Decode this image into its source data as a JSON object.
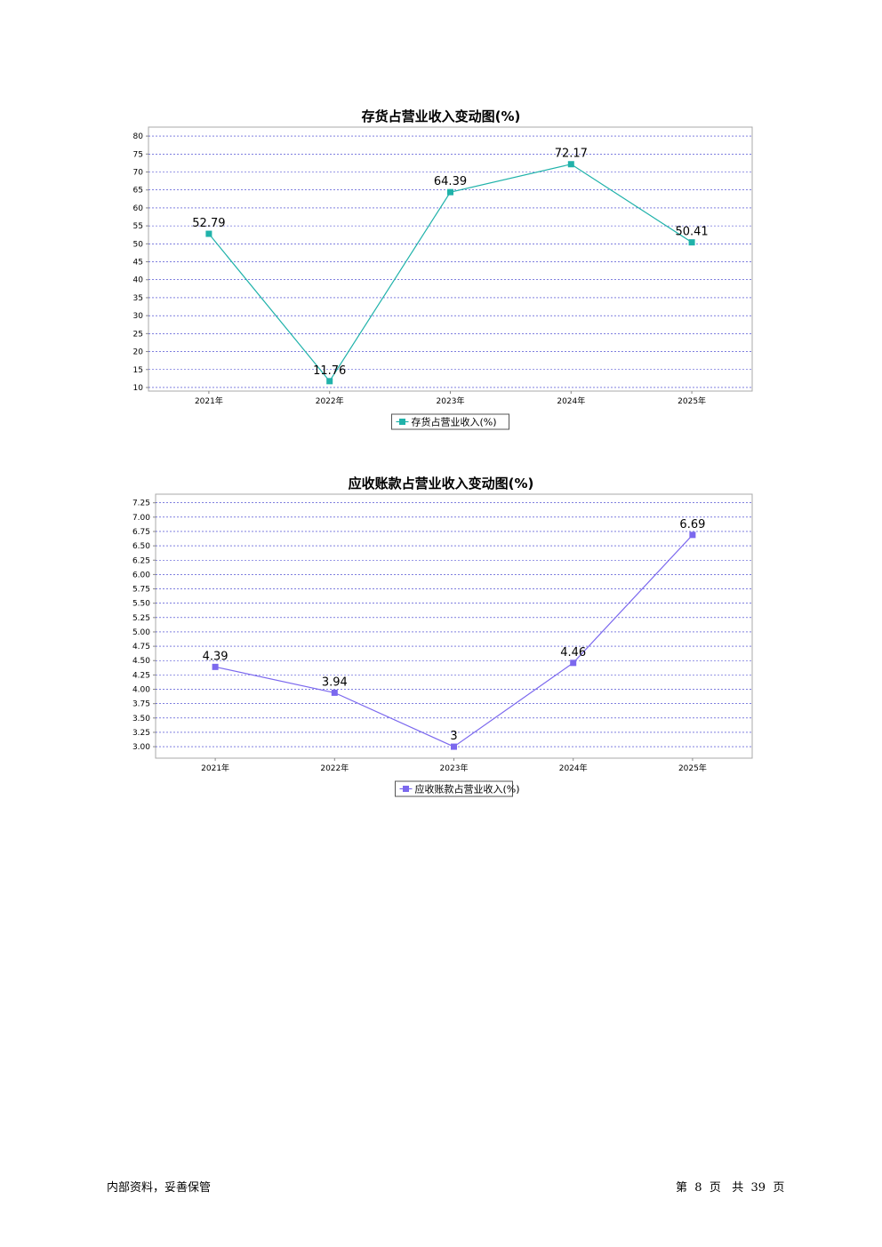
{
  "chart_data": [
    {
      "type": "line",
      "title": "存货占营业收入变动图(%)",
      "categories": [
        "2021年",
        "2022年",
        "2023年",
        "2024年",
        "2025年"
      ],
      "series": [
        {
          "name": "存货占营业收入(%)",
          "values": [
            52.79,
            11.76,
            64.39,
            72.17,
            50.41
          ],
          "labels": [
            "52.79",
            "11.76",
            "64.39",
            "72.17",
            "50.41"
          ],
          "color": "#20b2aa"
        }
      ],
      "yticks": [
        "10",
        "15",
        "20",
        "25",
        "30",
        "35",
        "40",
        "45",
        "50",
        "55",
        "60",
        "65",
        "70",
        "75",
        "80"
      ],
      "ylim": [
        9,
        82.5
      ],
      "grid": true,
      "legend": "bottom-center"
    },
    {
      "type": "line",
      "title": "应收账款占营业收入变动图(%)",
      "categories": [
        "2021年",
        "2022年",
        "2023年",
        "2024年",
        "2025年"
      ],
      "series": [
        {
          "name": "应收账款占营业收入(%)",
          "values": [
            4.39,
            3.94,
            3.0,
            4.46,
            6.69
          ],
          "labels": [
            "4.39",
            "3.94",
            "3",
            "4.46",
            "6.69"
          ],
          "color": "#7b68ee"
        }
      ],
      "yticks": [
        "3.00",
        "3.25",
        "3.50",
        "3.75",
        "4.00",
        "4.25",
        "4.50",
        "4.75",
        "5.00",
        "5.25",
        "5.50",
        "5.75",
        "6.00",
        "6.25",
        "6.50",
        "6.75",
        "7.00",
        "7.25"
      ],
      "ylim": [
        2.8,
        7.4
      ],
      "grid": true,
      "legend": "bottom-center"
    }
  ],
  "footer": {
    "left": "内部资料，妥善保管",
    "page_prefix": "第",
    "page_current": "8",
    "page_mid": "页",
    "total_prefix": "共",
    "page_total": "39",
    "total_suffix": "页"
  }
}
